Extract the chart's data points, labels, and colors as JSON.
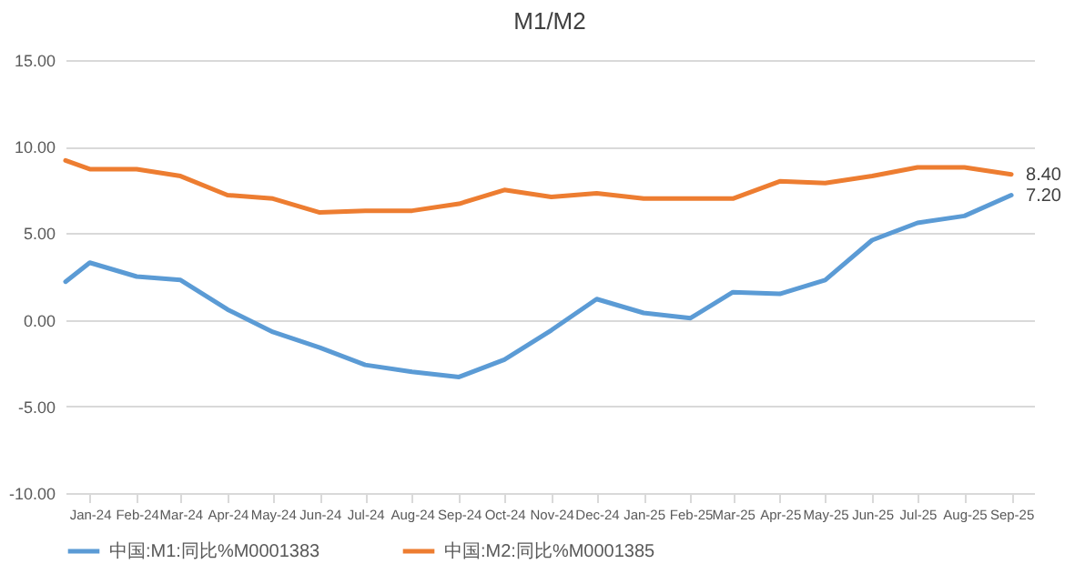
{
  "chart_data": {
    "type": "line",
    "title": "M1/M2",
    "x": [
      "2023-12-16",
      "2024-01",
      "2024-02",
      "2024-03",
      "2024-04",
      "2024-05",
      "2024-06",
      "2024-07",
      "2024-08",
      "2024-09",
      "2024-10",
      "2024-11",
      "2024-12",
      "2025-01",
      "2025-02",
      "2025-03",
      "2025-04",
      "2025-05",
      "2025-06",
      "2025-07",
      "2025-08",
      "2025-09"
    ],
    "series": [
      {
        "name": "中国:M1:同比%M0001383",
        "color": "#5b9bd5",
        "values": [
          2.2,
          3.3,
          2.5,
          2.3,
          0.6,
          -0.7,
          -1.6,
          -2.6,
          -3.0,
          -3.3,
          -2.3,
          -0.6,
          1.2,
          0.4,
          0.1,
          1.6,
          1.5,
          2.3,
          4.6,
          5.6,
          6.0,
          7.2
        ],
        "value_labels": [
          null,
          null,
          null,
          null,
          null,
          null,
          null,
          null,
          null,
          null,
          null,
          null,
          null,
          null,
          null,
          null,
          null,
          null,
          null,
          null,
          null,
          "7.20"
        ]
      },
      {
        "name": "中国:M2:同比%M0001385",
        "color": "#ed7d31",
        "values": [
          9.2,
          8.7,
          8.7,
          8.3,
          7.2,
          7.0,
          6.2,
          6.3,
          6.3,
          6.7,
          7.5,
          7.1,
          7.3,
          7.0,
          7.0,
          7.0,
          8.0,
          7.9,
          8.3,
          8.8,
          8.8,
          8.4
        ],
        "value_labels": [
          null,
          null,
          null,
          null,
          null,
          null,
          null,
          null,
          null,
          null,
          null,
          null,
          null,
          null,
          null,
          null,
          null,
          null,
          null,
          null,
          null,
          "8.40"
        ]
      }
    ],
    "xlim": [
      "2023-12-16",
      "2025-09-16"
    ],
    "xticks": [
      {
        "value": "2024-01",
        "label": "Jan-24"
      },
      {
        "value": "2024-02",
        "label": "Feb-24"
      },
      {
        "value": "2024-03",
        "label": "Mar-24"
      },
      {
        "value": "2024-04",
        "label": "Apr-24"
      },
      {
        "value": "2024-05",
        "label": "May-24"
      },
      {
        "value": "2024-06",
        "label": "Jun-24"
      },
      {
        "value": "2024-07",
        "label": "Jul-24"
      },
      {
        "value": "2024-08",
        "label": "Aug-24"
      },
      {
        "value": "2024-09",
        "label": "Sep-24"
      },
      {
        "value": "2024-10",
        "label": "Oct-24"
      },
      {
        "value": "2024-11",
        "label": "Nov-24"
      },
      {
        "value": "2024-12",
        "label": "Dec-24"
      },
      {
        "value": "2025-01",
        "label": "Jan-25"
      },
      {
        "value": "2025-02",
        "label": "Feb-25"
      },
      {
        "value": "2025-03",
        "label": "Mar-25"
      },
      {
        "value": "2025-04",
        "label": "Apr-25"
      },
      {
        "value": "2025-05",
        "label": "May-25"
      },
      {
        "value": "2025-06",
        "label": "Jun-25"
      },
      {
        "value": "2025-07",
        "label": "Jul-25"
      },
      {
        "value": "2025-08",
        "label": "Aug-25"
      },
      {
        "value": "2025-09",
        "label": "Sep-25"
      }
    ],
    "ylim": [
      -10,
      15
    ],
    "yticks": [
      {
        "value": -10,
        "label": "-10.00"
      },
      {
        "value": -5,
        "label": "-5.00"
      },
      {
        "value": 0,
        "label": "0.00"
      },
      {
        "value": 5,
        "label": "5.00"
      },
      {
        "value": 10,
        "label": "10.00"
      },
      {
        "value": 15,
        "label": "15.00"
      }
    ],
    "grid": "y",
    "legend": "bottom"
  }
}
